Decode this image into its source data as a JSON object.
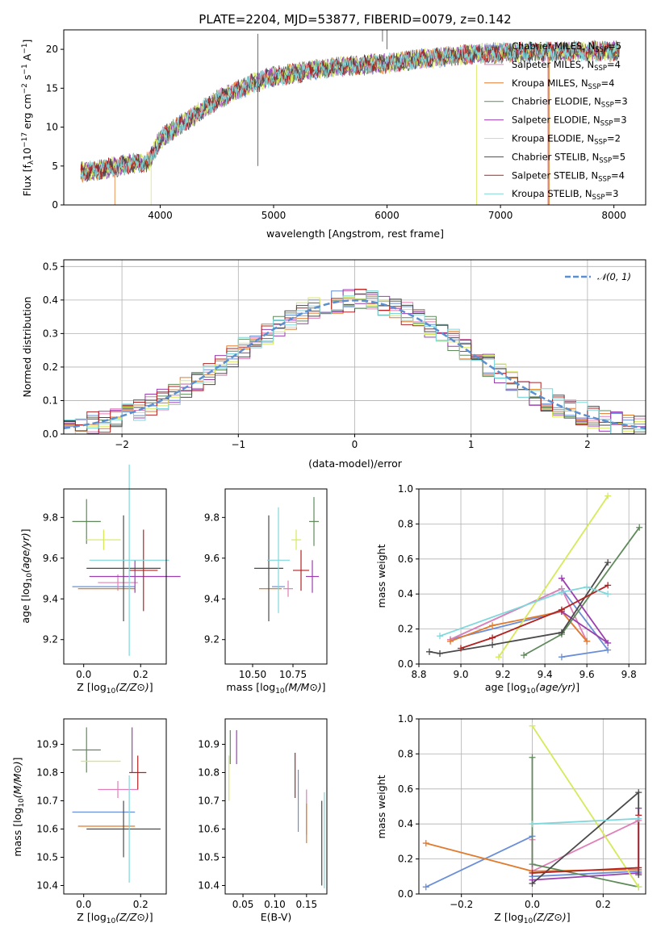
{
  "colors": {
    "chabrier_miles": "#6a8fd8",
    "salpeter_miles": "#e07fb8",
    "kroupa_miles": "#e07b2e",
    "chabrier_elodie": "#5f8a5a",
    "salpeter_elodie": "#9b3fb0",
    "kroupa_elodie": "#d6ea5a",
    "chabrier_stelib": "#4a4a4a",
    "salpeter_stelib": "#b22222",
    "kroupa_stelib": "#7fd8dc",
    "gaussian": "#5b8fd0"
  },
  "chart_data": [
    {
      "type": "line",
      "title": "PLATE=2204, MJD=53877, FIBERID=0079, z=0.142",
      "xlabel": "wavelength [Angstrom, rest frame]",
      "ylabel_parts": [
        "Flux [f",
        "λ",
        "10",
        "−17",
        " erg cm",
        "−2",
        " s",
        "−1",
        " A",
        "−1",
        "]"
      ],
      "xlim": [
        3150,
        8280
      ],
      "ylim": [
        0,
        22.5
      ],
      "xticks": [
        "4000",
        "5000",
        "6000",
        "7000",
        "8000"
      ],
      "yticks": [
        "0",
        "5",
        "10",
        "15",
        "20"
      ],
      "spectrum_x_range": [
        3300,
        8050
      ],
      "spectrum_continuum": [
        [
          3300,
          4.2
        ],
        [
          3500,
          4.6
        ],
        [
          3700,
          5.2
        ],
        [
          3900,
          5.5
        ],
        [
          4000,
          8.5
        ],
        [
          4200,
          10.5
        ],
        [
          4500,
          13.5
        ],
        [
          4800,
          15.5
        ],
        [
          5000,
          16.5
        ],
        [
          5300,
          17.2
        ],
        [
          5600,
          17.8
        ],
        [
          6000,
          18.2
        ],
        [
          6300,
          18.8
        ],
        [
          6600,
          19.2
        ],
        [
          7000,
          19.6
        ],
        [
          7500,
          19.7
        ],
        [
          8050,
          19.8
        ]
      ],
      "legend": [
        {
          "key": "chabrier_miles",
          "imf": "Chabrier",
          "lib": "MILES",
          "n": "5"
        },
        {
          "key": "salpeter_miles",
          "imf": "Salpeter",
          "lib": "MILES",
          "n": "4"
        },
        {
          "key": "kroupa_miles",
          "imf": "Kroupa",
          "lib": "MILES",
          "n": "4"
        },
        {
          "key": "chabrier_elodie",
          "imf": "Chabrier",
          "lib": "ELODIE",
          "n": "3"
        },
        {
          "key": "salpeter_elodie",
          "imf": "Salpeter",
          "lib": "ELODIE",
          "n": "3"
        },
        {
          "key": "kroupa_elodie",
          "imf": "Kroupa",
          "lib": "ELODIE",
          "n": "2"
        },
        {
          "key": "chabrier_stelib",
          "imf": "Chabrier",
          "lib": "STELIB",
          "n": "5"
        },
        {
          "key": "salpeter_stelib",
          "imf": "Salpeter",
          "lib": "STELIB",
          "n": "4"
        },
        {
          "key": "kroupa_stelib",
          "imf": "Kroupa",
          "lib": "STELIB",
          "n": "3"
        }
      ]
    },
    {
      "type": "histogram",
      "xlabel": "(data-model)/error",
      "ylabel": "Normed distribution",
      "xlim": [
        -2.5,
        2.5
      ],
      "ylim": [
        0,
        0.52
      ],
      "xticks": [
        "−2",
        "−1",
        "0",
        "1",
        "2"
      ],
      "yticks": [
        "0.0",
        "0.1",
        "0.2",
        "0.3",
        "0.4",
        "0.5"
      ],
      "grid": true,
      "bins": 50,
      "gaussian_label": "𝒩(0, 1)",
      "legend_position": "top-right"
    },
    {
      "type": "scatter",
      "xlabel": "Z [log10(Z/Z⊙)]",
      "ylabel": "age  [log10(age/yr)]",
      "xlim": [
        -0.07,
        0.29
      ],
      "ylim": [
        9.08,
        9.94
      ],
      "xticks": [
        "0.0",
        "0.2"
      ],
      "yticks": [
        "9.2",
        "9.4",
        "9.6",
        "9.8"
      ],
      "points": [
        {
          "key": "chabrier_miles",
          "x": 0.07,
          "xerr": 0.11,
          "y": 9.46,
          "yerr": 0.0
        },
        {
          "key": "salpeter_miles",
          "x": 0.12,
          "xerr": 0.07,
          "y": 9.48,
          "yerr": 0.04
        },
        {
          "key": "kroupa_miles",
          "x": 0.08,
          "xerr": 0.1,
          "y": 9.45,
          "yerr": 0.0
        },
        {
          "key": "chabrier_elodie",
          "x": 0.01,
          "xerr": 0.05,
          "y": 9.78,
          "yerr": 0.11
        },
        {
          "key": "salpeter_elodie",
          "x": 0.18,
          "xerr": 0.16,
          "y": 9.51,
          "yerr": 0.08
        },
        {
          "key": "kroupa_elodie",
          "x": 0.07,
          "xerr": 0.06,
          "y": 9.69,
          "yerr": 0.05
        },
        {
          "key": "chabrier_stelib",
          "x": 0.14,
          "xerr": 0.13,
          "y": 9.55,
          "yerr": 0.26
        },
        {
          "key": "salpeter_stelib",
          "x": 0.21,
          "xerr": 0.05,
          "y": 9.54,
          "yerr": 0.2
        },
        {
          "key": "kroupa_stelib",
          "x": 0.16,
          "xerr": 0.14,
          "y": 9.59,
          "yerr": 0.47
        }
      ]
    },
    {
      "type": "scatter",
      "xlabel": "mass [log10(M/M⊙)]",
      "ylabel": "",
      "xlim": [
        10.33,
        10.96
      ],
      "ylim": [
        9.08,
        9.94
      ],
      "xticks": [
        "10.50",
        "10.75"
      ],
      "yticks": [
        "9.2",
        "9.4",
        "9.6",
        "9.8"
      ],
      "points": [
        {
          "key": "chabrier_miles",
          "x": 10.66,
          "xerr": 0.04,
          "y": 9.46,
          "yerr": 0.0
        },
        {
          "key": "salpeter_miles",
          "x": 10.72,
          "xerr": 0.03,
          "y": 9.45,
          "yerr": 0.04
        },
        {
          "key": "kroupa_miles",
          "x": 10.61,
          "xerr": 0.07,
          "y": 9.45,
          "yerr": 0.0
        },
        {
          "key": "chabrier_elodie",
          "x": 10.88,
          "xerr": 0.03,
          "y": 9.78,
          "yerr": 0.12
        },
        {
          "key": "salpeter_elodie",
          "x": 10.87,
          "xerr": 0.04,
          "y": 9.51,
          "yerr": 0.08
        },
        {
          "key": "kroupa_elodie",
          "x": 10.77,
          "xerr": 0.03,
          "y": 9.69,
          "yerr": 0.05
        },
        {
          "key": "chabrier_stelib",
          "x": 10.6,
          "xerr": 0.09,
          "y": 9.55,
          "yerr": 0.26
        },
        {
          "key": "salpeter_stelib",
          "x": 10.8,
          "xerr": 0.05,
          "y": 9.54,
          "yerr": 0.1
        },
        {
          "key": "kroupa_stelib",
          "x": 10.66,
          "xerr": 0.07,
          "y": 9.59,
          "yerr": 0.26
        }
      ]
    },
    {
      "type": "line",
      "xlabel": "age  [log10(age/yr)]",
      "ylabel": "mass weight",
      "xlim": [
        8.8,
        9.88
      ],
      "ylim": [
        0,
        1.0
      ],
      "xticks": [
        "8.8",
        "9.0",
        "9.2",
        "9.4",
        "9.6",
        "9.8"
      ],
      "yticks": [
        "0.0",
        "0.2",
        "0.4",
        "0.6",
        "0.8",
        "1.0"
      ],
      "grid": true,
      "series": [
        {
          "key": "chabrier_miles",
          "points": [
            [
              9.48,
              0.04
            ],
            [
              9.7,
              0.08
            ],
            [
              9.48,
              0.43
            ],
            [
              8.95,
              0.14
            ],
            [
              9.48,
              0.3
            ]
          ]
        },
        {
          "key": "salpeter_miles",
          "points": [
            [
              8.95,
              0.14
            ],
            [
              9.48,
              0.43
            ],
            [
              9.6,
              0.13
            ],
            [
              9.48,
              0.3
            ]
          ]
        },
        {
          "key": "kroupa_miles",
          "points": [
            [
              8.95,
              0.13
            ],
            [
              9.15,
              0.22
            ],
            [
              9.48,
              0.3
            ],
            [
              9.6,
              0.13
            ]
          ]
        },
        {
          "key": "chabrier_elodie",
          "points": [
            [
              9.3,
              0.05
            ],
            [
              9.48,
              0.17
            ],
            [
              9.85,
              0.78
            ]
          ]
        },
        {
          "key": "salpeter_elodie",
          "points": [
            [
              9.48,
              0.49
            ],
            [
              9.7,
              0.12
            ],
            [
              9.48,
              0.3
            ]
          ]
        },
        {
          "key": "kroupa_elodie",
          "points": [
            [
              9.18,
              0.04
            ],
            [
              9.7,
              0.96
            ]
          ]
        },
        {
          "key": "chabrier_stelib",
          "points": [
            [
              8.85,
              0.07
            ],
            [
              8.9,
              0.06
            ],
            [
              9.15,
              0.11
            ],
            [
              9.48,
              0.18
            ],
            [
              9.7,
              0.58
            ]
          ]
        },
        {
          "key": "salpeter_stelib",
          "points": [
            [
              9.0,
              0.09
            ],
            [
              9.15,
              0.15
            ],
            [
              9.48,
              0.31
            ],
            [
              9.7,
              0.45
            ]
          ]
        },
        {
          "key": "kroupa_stelib",
          "points": [
            [
              8.9,
              0.16
            ],
            [
              9.48,
              0.41
            ],
            [
              9.6,
              0.44
            ],
            [
              9.7,
              0.4
            ]
          ]
        }
      ]
    },
    {
      "type": "scatter",
      "xlabel": "Z [log10(Z/Z⊙)]",
      "ylabel": "mass [log10(M/M⊙)]",
      "xlim": [
        -0.07,
        0.29
      ],
      "ylim": [
        10.37,
        10.99
      ],
      "xticks": [
        "0.0",
        "0.2"
      ],
      "yticks": [
        "10.4",
        "10.5",
        "10.6",
        "10.7",
        "10.8",
        "10.9"
      ],
      "points": [
        {
          "key": "chabrier_miles",
          "x": 0.07,
          "xerr": 0.11,
          "y": 10.66,
          "yerr": 0.0
        },
        {
          "key": "salpeter_miles",
          "x": 0.12,
          "xerr": 0.07,
          "y": 10.74,
          "yerr": 0.03
        },
        {
          "key": "kroupa_miles",
          "x": 0.08,
          "xerr": 0.1,
          "y": 10.61,
          "yerr": 0.0
        },
        {
          "key": "chabrier_elodie",
          "x": 0.01,
          "xerr": 0.05,
          "y": 10.88,
          "yerr": 0.08
        },
        {
          "key": "salpeter_elodie",
          "x": 0.17,
          "xerr": 0.0,
          "y": 10.88,
          "yerr": 0.08
        },
        {
          "key": "kroupa_elodie",
          "x": 0.06,
          "xerr": 0.07,
          "y": 10.84,
          "yerr": 0.0
        },
        {
          "key": "chabrier_stelib",
          "x": 0.14,
          "xerr": 0.13,
          "y": 10.6,
          "yerr": 0.1
        },
        {
          "key": "salpeter_stelib",
          "x": 0.19,
          "xerr": 0.03,
          "y": 10.8,
          "yerr": 0.06
        },
        {
          "key": "kroupa_stelib",
          "x": 0.16,
          "xerr": 0.0,
          "y": 10.6,
          "yerr": 0.19
        }
      ]
    },
    {
      "type": "scatter",
      "xlabel": "E(B-V)",
      "ylabel": "",
      "xlim": [
        0.022,
        0.182
      ],
      "ylim": [
        10.37,
        10.99
      ],
      "xticks": [
        "0.05",
        "0.10",
        "0.15"
      ],
      "yticks": [
        "10.4",
        "10.5",
        "10.6",
        "10.7",
        "10.8",
        "10.9"
      ],
      "points": [
        {
          "key": "chabrier_miles",
          "x": 0.137,
          "xerr": 0.0,
          "y": 10.7,
          "yerr": 0.11
        },
        {
          "key": "salpeter_miles",
          "x": 0.15,
          "xerr": 0.0,
          "y": 10.66,
          "yerr": 0.08
        },
        {
          "key": "kroupa_miles",
          "x": 0.15,
          "xerr": 0.0,
          "y": 10.62,
          "yerr": 0.07
        },
        {
          "key": "chabrier_elodie",
          "x": 0.03,
          "xerr": 0.0,
          "y": 10.89,
          "yerr": 0.06
        },
        {
          "key": "salpeter_elodie",
          "x": 0.04,
          "xerr": 0.0,
          "y": 10.89,
          "yerr": 0.06
        },
        {
          "key": "kroupa_elodie",
          "x": 0.028,
          "xerr": 0.0,
          "y": 10.78,
          "yerr": 0.08
        },
        {
          "key": "chabrier_stelib",
          "x": 0.174,
          "xerr": 0.0,
          "y": 10.55,
          "yerr": 0.15
        },
        {
          "key": "salpeter_stelib",
          "x": 0.132,
          "xerr": 0.0,
          "y": 10.79,
          "yerr": 0.08
        },
        {
          "key": "kroupa_stelib",
          "x": 0.178,
          "xerr": 0.0,
          "y": 10.56,
          "yerr": 0.17
        }
      ]
    },
    {
      "type": "line",
      "xlabel": "Z [log10(Z/Z⊙)]",
      "ylabel": "mass weight",
      "xlim": [
        -0.32,
        0.32
      ],
      "ylim": [
        0,
        1.0
      ],
      "xticks": [
        "−0.2",
        "0.0",
        "0.2"
      ],
      "yticks": [
        "0.0",
        "0.2",
        "0.4",
        "0.6",
        "0.8",
        "1.0"
      ],
      "grid": true,
      "series": [
        {
          "key": "chabrier_miles",
          "points": [
            [
              -0.3,
              0.04
            ],
            [
              0.0,
              0.33
            ],
            [
              0.0,
              0.1
            ],
            [
              0.3,
              0.13
            ]
          ]
        },
        {
          "key": "salpeter_miles",
          "points": [
            [
              0.0,
              0.31
            ],
            [
              0.0,
              0.13
            ],
            [
              0.3,
              0.42
            ]
          ]
        },
        {
          "key": "kroupa_miles",
          "points": [
            [
              -0.3,
              0.29
            ],
            [
              0.0,
              0.13
            ],
            [
              0.3,
              0.14
            ]
          ]
        },
        {
          "key": "chabrier_elodie",
          "points": [
            [
              0.0,
              0.78
            ],
            [
              0.0,
              0.17
            ],
            [
              0.3,
              0.04
            ]
          ]
        },
        {
          "key": "salpeter_elodie",
          "points": [
            [
              0.0,
              0.08
            ],
            [
              0.3,
              0.12
            ],
            [
              0.3,
              0.49
            ]
          ]
        },
        {
          "key": "kroupa_elodie",
          "points": [
            [
              0.0,
              0.96
            ],
            [
              0.3,
              0.04
            ]
          ]
        },
        {
          "key": "chabrier_stelib",
          "points": [
            [
              0.0,
              0.06
            ],
            [
              0.3,
              0.58
            ],
            [
              0.3,
              0.11
            ]
          ]
        },
        {
          "key": "salpeter_stelib",
          "points": [
            [
              0.0,
              0.12
            ],
            [
              0.3,
              0.15
            ],
            [
              0.3,
              0.45
            ]
          ]
        },
        {
          "key": "kroupa_stelib",
          "points": [
            [
              0.0,
              0.4
            ],
            [
              0.3,
              0.43
            ]
          ]
        }
      ]
    }
  ]
}
